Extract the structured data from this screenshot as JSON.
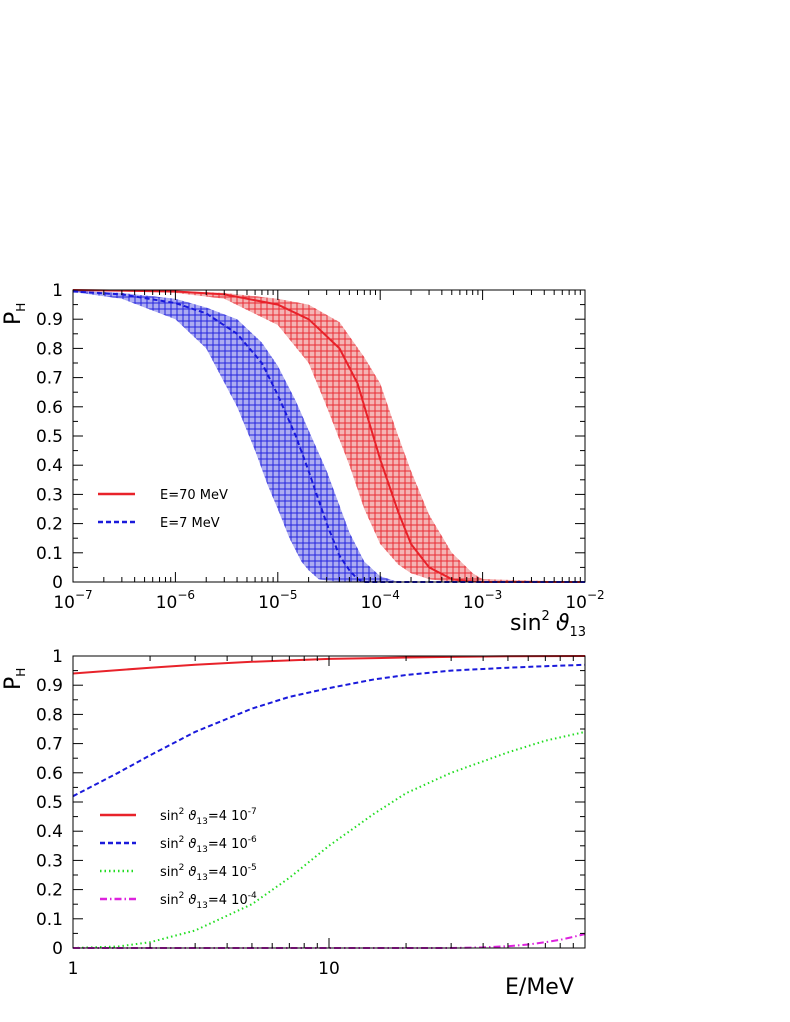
{
  "chart_data": [
    {
      "type": "area",
      "ylabel": "P",
      "ylabel_sub": "H",
      "xlabel": "sin",
      "xlabel_sup": "2",
      "xlabel_theta": "ϑ",
      "xlabel_sub": "13",
      "xscale": "log",
      "xlim": [
        1e-07,
        0.01
      ],
      "ylim": [
        0,
        1
      ],
      "x_ticks": [
        {
          "base": "10",
          "exp": "−7",
          "value": 1e-07
        },
        {
          "base": "10",
          "exp": "−6",
          "value": 1e-06
        },
        {
          "base": "10",
          "exp": "−5",
          "value": 1e-05
        },
        {
          "base": "10",
          "exp": "−4",
          "value": 0.0001
        },
        {
          "base": "10",
          "exp": "−3",
          "value": 0.001
        },
        {
          "base": "10",
          "exp": "−2",
          "value": 0.01
        }
      ],
      "y_ticks": [
        "0",
        "0.1",
        "0.2",
        "0.3",
        "0.4",
        "0.5",
        "0.6",
        "0.7",
        "0.8",
        "0.9",
        "1"
      ],
      "y_tick_values": [
        0,
        0.1,
        0.2,
        0.3,
        0.4,
        0.5,
        0.6,
        0.7,
        0.8,
        0.9,
        1
      ],
      "legend_position": "lower-left",
      "series": [
        {
          "name": "E=70 MeV",
          "color": "#e8222a",
          "style": "solid",
          "center": {
            "x": [
              1e-07,
              1e-06,
              3e-06,
              1e-05,
              2e-05,
              4e-05,
              6e-05,
              0.0001,
              0.00015,
              0.0002,
              0.0003,
              0.0005,
              0.0007,
              0.001,
              0.01
            ],
            "y": [
              1.0,
              0.995,
              0.985,
              0.95,
              0.9,
              0.8,
              0.68,
              0.42,
              0.24,
              0.13,
              0.05,
              0.01,
              0.003,
              0.0,
              0.0
            ]
          },
          "band_upper": {
            "x": [
              1e-07,
              1e-06,
              3e-06,
              1e-05,
              2e-05,
              4e-05,
              7e-05,
              0.0001,
              0.00015,
              0.0002,
              0.0003,
              0.0005,
              0.0008,
              0.001,
              0.01
            ],
            "y": [
              1.0,
              0.997,
              0.99,
              0.97,
              0.95,
              0.89,
              0.77,
              0.68,
              0.5,
              0.38,
              0.23,
              0.1,
              0.03,
              0.01,
              0.0
            ]
          },
          "band_lower": {
            "x": [
              1e-07,
              1e-06,
              3e-06,
              1e-05,
              2e-05,
              3e-05,
              5e-05,
              7e-05,
              0.0001,
              0.00015,
              0.0002,
              0.0003,
              0.0005,
              0.001,
              0.01
            ],
            "y": [
              1.0,
              0.99,
              0.97,
              0.88,
              0.75,
              0.6,
              0.4,
              0.25,
              0.13,
              0.06,
              0.03,
              0.01,
              0.0,
              0.0,
              0.0
            ]
          }
        },
        {
          "name": "E=7 MeV",
          "color": "#1a1adb",
          "style": "dashed",
          "center": {
            "x": [
              1e-07,
              3e-07,
              1e-06,
              2e-06,
              4e-06,
              7e-06,
              1e-05,
              1.5e-05,
              2e-05,
              3e-05,
              4e-05,
              5e-05,
              6e-05,
              7e-05,
              0.01
            ],
            "y": [
              0.995,
              0.985,
              0.955,
              0.92,
              0.85,
              0.75,
              0.64,
              0.5,
              0.38,
              0.2,
              0.09,
              0.04,
              0.01,
              0.0,
              0.0
            ]
          },
          "band_upper": {
            "x": [
              1e-07,
              3e-07,
              1e-06,
              2e-06,
              4e-06,
              7e-06,
              1e-05,
              1.5e-05,
              2e-05,
              3e-05,
              5e-05,
              7e-05,
              0.0001,
              0.00015,
              0.01
            ],
            "y": [
              0.998,
              0.99,
              0.97,
              0.94,
              0.9,
              0.82,
              0.74,
              0.62,
              0.52,
              0.38,
              0.17,
              0.07,
              0.02,
              0.0,
              0.0
            ]
          },
          "band_lower": {
            "x": [
              1e-07,
              3e-07,
              1e-06,
              2e-06,
              4e-06,
              6e-06,
              8e-06,
              1e-05,
              1.3e-05,
              1.7e-05,
              2e-05,
              2.5e-05,
              3e-05,
              4e-05,
              0.01
            ],
            "y": [
              0.993,
              0.97,
              0.9,
              0.8,
              0.6,
              0.45,
              0.33,
              0.25,
              0.15,
              0.07,
              0.04,
              0.01,
              0.005,
              0.0,
              0.0
            ]
          }
        }
      ]
    },
    {
      "type": "line",
      "ylabel": "P",
      "ylabel_sub": "H",
      "xlabel": "E/MeV",
      "xscale": "log",
      "xlim": [
        1,
        100
      ],
      "ylim": [
        0,
        1
      ],
      "x_ticks": [
        {
          "label": "1",
          "value": 1
        },
        {
          "label": "10",
          "value": 10
        }
      ],
      "y_ticks": [
        "0",
        "0.1",
        "0.2",
        "0.3",
        "0.4",
        "0.5",
        "0.6",
        "0.7",
        "0.8",
        "0.9",
        "1"
      ],
      "y_tick_values": [
        0,
        0.1,
        0.2,
        0.3,
        0.4,
        0.5,
        0.6,
        0.7,
        0.8,
        0.9,
        1
      ],
      "legend_position": "lower-left",
      "legend_prefix": "sin",
      "legend_prefix_sup": "2",
      "legend_theta": "ϑ",
      "legend_theta_sub": "13",
      "series": [
        {
          "legend_value": "=4 10",
          "legend_exp": "-7",
          "color": "#e8222a",
          "style": "solid",
          "x": [
            1,
            2,
            3,
            5,
            10,
            20,
            30,
            50,
            100
          ],
          "y": [
            0.94,
            0.96,
            0.97,
            0.98,
            0.99,
            0.995,
            0.997,
            0.999,
            1.0
          ]
        },
        {
          "legend_value": "=4 10",
          "legend_exp": "-6",
          "color": "#1a1adb",
          "style": "dashed",
          "x": [
            1,
            1.5,
            2,
            3,
            5,
            7,
            10,
            15,
            20,
            30,
            50,
            70,
            100
          ],
          "y": [
            0.52,
            0.6,
            0.66,
            0.74,
            0.82,
            0.86,
            0.89,
            0.92,
            0.935,
            0.95,
            0.96,
            0.965,
            0.97
          ]
        },
        {
          "legend_value": "=4 10",
          "legend_exp": "-5",
          "color": "#22dd22",
          "style": "dotted",
          "x": [
            1,
            1.5,
            2,
            3,
            5,
            7,
            10,
            15,
            20,
            30,
            50,
            70,
            100
          ],
          "y": [
            0.0,
            0.005,
            0.02,
            0.06,
            0.15,
            0.24,
            0.35,
            0.46,
            0.53,
            0.6,
            0.67,
            0.71,
            0.74
          ]
        },
        {
          "legend_value": "=4 10",
          "legend_exp": "-4",
          "color": "#dd22dd",
          "style": "dashdot",
          "x": [
            1,
            10,
            30,
            40,
            50,
            60,
            70,
            80,
            90,
            100
          ],
          "y": [
            0.0,
            0.0,
            0.0,
            0.002,
            0.006,
            0.012,
            0.02,
            0.028,
            0.038,
            0.048
          ]
        }
      ]
    }
  ]
}
